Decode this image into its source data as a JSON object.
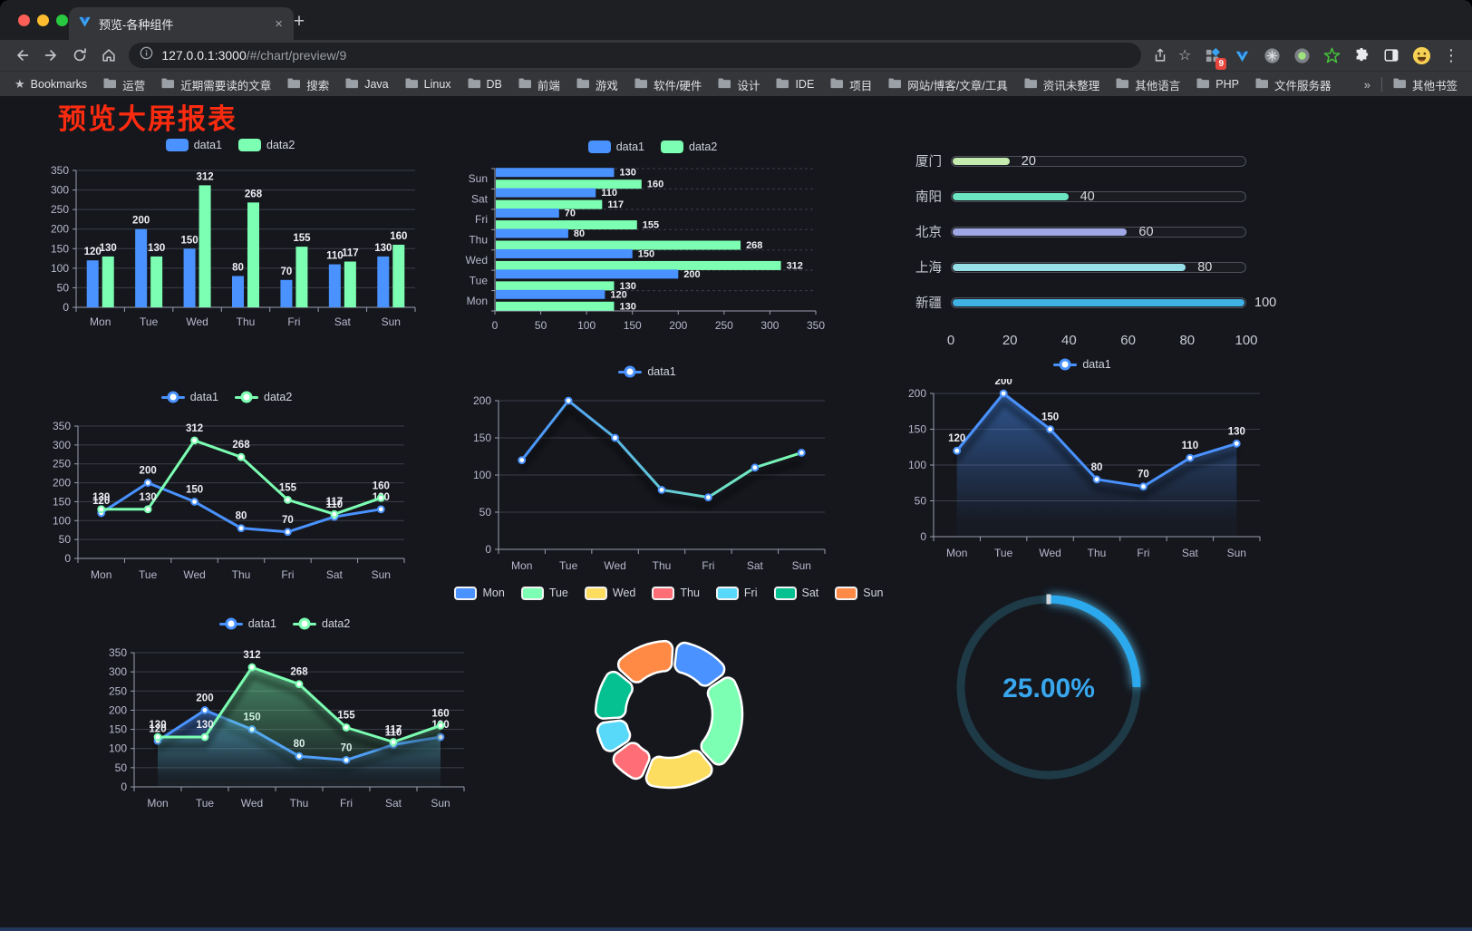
{
  "browser": {
    "tab_title": "预览-各种组件",
    "close_tab": "×",
    "new_tab": "+",
    "url_host": "127.0.0.1:3000",
    "url_path": "/#/chart/preview/9",
    "extension_badge": "9",
    "menu_dots": "⋮",
    "bookmarks": {
      "star_label": "Bookmarks",
      "items": [
        "运营",
        "近期需要读的文章",
        "搜索",
        "Java",
        "Linux",
        "DB",
        "前端",
        "游戏",
        "软件/硬件",
        "设计",
        "IDE",
        "项目",
        "网站/博客/文章/工具",
        "资讯未整理",
        "其他语言",
        "PHP",
        "文件服务器"
      ],
      "overflow": "»",
      "other": "其他书签"
    }
  },
  "page": {
    "title": "预览大屏报表",
    "title_color": "#fb2b10",
    "background": "#15171d"
  },
  "chart_data": [
    {
      "type": "bar",
      "categories": [
        "Mon",
        "Tue",
        "Wed",
        "Thu",
        "Fri",
        "Sat",
        "Sun"
      ],
      "series": [
        {
          "name": "data1",
          "color": "#4992ff",
          "values": [
            120,
            200,
            150,
            80,
            70,
            110,
            130
          ]
        },
        {
          "name": "data2",
          "color": "#7cffb2",
          "values": [
            130,
            130,
            312,
            268,
            155,
            117,
            160
          ]
        }
      ],
      "ylim": [
        0,
        350
      ],
      "yticks": [
        0,
        50,
        100,
        150,
        200,
        250,
        300,
        350
      ],
      "labels": true,
      "grid": true,
      "legend_position": "top",
      "legend_marker": "rect"
    },
    {
      "type": "bar-horizontal",
      "categories": [
        "Mon",
        "Tue",
        "Wed",
        "Thu",
        "Fri",
        "Sat",
        "Sun"
      ],
      "display_order": "reversed (Sun top, Mon bottom)",
      "series": [
        {
          "name": "data1",
          "color": "#4992ff",
          "values": [
            120,
            200,
            150,
            80,
            70,
            110,
            130
          ]
        },
        {
          "name": "data2",
          "color": "#7cffb2",
          "values": [
            130,
            130,
            312,
            268,
            155,
            117,
            160
          ]
        }
      ],
      "xlim": [
        0,
        350
      ],
      "xticks": [
        0,
        50,
        100,
        150,
        200,
        250,
        300,
        350
      ],
      "labels": true,
      "grid": true,
      "legend_position": "top",
      "legend_marker": "rect"
    },
    {
      "type": "progress",
      "rows": [
        {
          "label": "厦门",
          "value": 20,
          "color": "#c4ebad"
        },
        {
          "label": "南阳",
          "value": 40,
          "color": "#6be6c1"
        },
        {
          "label": "北京",
          "value": 60,
          "color": "#a0a7e6"
        },
        {
          "label": "上海",
          "value": 80,
          "color": "#96dee8"
        },
        {
          "label": "新疆",
          "value": 100,
          "color": "#3fb1e3"
        }
      ],
      "max": 100,
      "xticks": [
        0,
        20,
        40,
        60,
        80,
        100
      ]
    },
    {
      "type": "line",
      "categories": [
        "Mon",
        "Tue",
        "Wed",
        "Thu",
        "Fri",
        "Sat",
        "Sun"
      ],
      "series": [
        {
          "name": "data1",
          "color": "#4992ff",
          "values": [
            120,
            200,
            150,
            80,
            70,
            110,
            130
          ]
        },
        {
          "name": "data2",
          "color": "#7cffb2",
          "values": [
            130,
            130,
            312,
            268,
            155,
            117,
            160
          ]
        }
      ],
      "ylim": [
        0,
        350
      ],
      "yticks": [
        0,
        50,
        100,
        150,
        200,
        250,
        300,
        350
      ],
      "labels": true,
      "markers": true,
      "legend_position": "top",
      "legend_marker": "dot"
    },
    {
      "type": "line",
      "categories": [
        "Mon",
        "Tue",
        "Wed",
        "Thu",
        "Fri",
        "Sat",
        "Sun"
      ],
      "series": [
        {
          "name": "data1",
          "color": "#4992ff",
          "color_end": "#7cffb2",
          "values": [
            120,
            200,
            150,
            80,
            70,
            110,
            130
          ],
          "shadow": true
        }
      ],
      "ylim": [
        0,
        200
      ],
      "yticks": [
        0,
        50,
        100,
        150,
        200
      ],
      "labels": false,
      "markers": true,
      "legend_position": "top",
      "legend_marker": "dot"
    },
    {
      "type": "line",
      "categories": [
        "Mon",
        "Tue",
        "Wed",
        "Thu",
        "Fri",
        "Sat",
        "Sun"
      ],
      "series": [
        {
          "name": "data1",
          "color": "#4992ff",
          "values": [
            120,
            200,
            150,
            80,
            70,
            110,
            130
          ],
          "area": true,
          "shadow": true
        }
      ],
      "ylim": [
        0,
        200
      ],
      "yticks": [
        0,
        50,
        100,
        150,
        200
      ],
      "labels": true,
      "markers": true,
      "legend_position": "top",
      "legend_marker": "dot"
    },
    {
      "type": "line",
      "categories": [
        "Mon",
        "Tue",
        "Wed",
        "Thu",
        "Fri",
        "Sat",
        "Sun"
      ],
      "series": [
        {
          "name": "data1",
          "color": "#4992ff",
          "values": [
            120,
            200,
            150,
            80,
            70,
            110,
            130
          ],
          "area": true,
          "shadow": true
        },
        {
          "name": "data2",
          "color": "#7cffb2",
          "values": [
            130,
            130,
            312,
            268,
            155,
            117,
            160
          ],
          "area": true,
          "shadow": true
        }
      ],
      "ylim": [
        0,
        350
      ],
      "yticks": [
        0,
        50,
        100,
        150,
        200,
        250,
        300,
        350
      ],
      "labels": true,
      "markers": true,
      "legend_position": "top",
      "legend_marker": "dot"
    },
    {
      "type": "pie",
      "categories": [
        "Mon",
        "Tue",
        "Wed",
        "Thu",
        "Fri",
        "Sat",
        "Sun"
      ],
      "values": [
        120,
        200,
        150,
        80,
        70,
        110,
        130
      ],
      "colors": [
        "#4992ff",
        "#7cffb2",
        "#fddd60",
        "#ff6e76",
        "#58d9f9",
        "#05c091",
        "#ff8a45"
      ],
      "inner_radius": 48,
      "outer_radius": 81,
      "start_angle": -85,
      "legend_position": "top",
      "legend_marker": "rect-border",
      "border_color": "#ffffff"
    },
    {
      "type": "gauge",
      "value": 25,
      "max": 100,
      "label": "25.00%",
      "color": "#2ba9ec",
      "track_color": "#1d3a46",
      "text_color": "#38a7ee"
    }
  ]
}
